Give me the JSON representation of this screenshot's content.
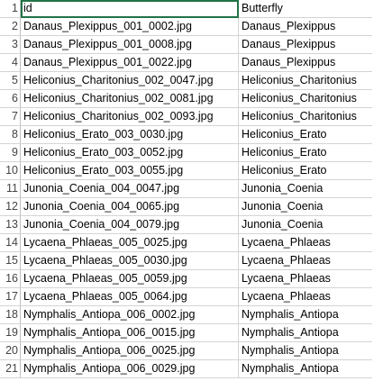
{
  "sheet": {
    "headers": [
      "id",
      "Butterfly"
    ],
    "rows": [
      {
        "num": "1",
        "id": "id",
        "butterfly": "Butterfly"
      },
      {
        "num": "2",
        "id": "Danaus_Plexippus_001_0002.jpg",
        "butterfly": "Danaus_Plexippus"
      },
      {
        "num": "3",
        "id": "Danaus_Plexippus_001_0008.jpg",
        "butterfly": "Danaus_Plexippus"
      },
      {
        "num": "4",
        "id": "Danaus_Plexippus_001_0022.jpg",
        "butterfly": "Danaus_Plexippus"
      },
      {
        "num": "5",
        "id": "Heliconius_Charitonius_002_0047.jpg",
        "butterfly": "Heliconius_Charitonius"
      },
      {
        "num": "6",
        "id": "Heliconius_Charitonius_002_0081.jpg",
        "butterfly": "Heliconius_Charitonius"
      },
      {
        "num": "7",
        "id": "Heliconius_Charitonius_002_0093.jpg",
        "butterfly": "Heliconius_Charitonius"
      },
      {
        "num": "8",
        "id": "Heliconius_Erato_003_0030.jpg",
        "butterfly": "Heliconius_Erato"
      },
      {
        "num": "9",
        "id": "Heliconius_Erato_003_0052.jpg",
        "butterfly": "Heliconius_Erato"
      },
      {
        "num": "10",
        "id": "Heliconius_Erato_003_0055.jpg",
        "butterfly": "Heliconius_Erato"
      },
      {
        "num": "11",
        "id": "Junonia_Coenia_004_0047.jpg",
        "butterfly": "Junonia_Coenia"
      },
      {
        "num": "12",
        "id": "Junonia_Coenia_004_0065.jpg",
        "butterfly": "Junonia_Coenia"
      },
      {
        "num": "13",
        "id": "Junonia_Coenia_004_0079.jpg",
        "butterfly": "Junonia_Coenia"
      },
      {
        "num": "14",
        "id": "Lycaena_Phlaeas_005_0025.jpg",
        "butterfly": "Lycaena_Phlaeas"
      },
      {
        "num": "15",
        "id": "Lycaena_Phlaeas_005_0030.jpg",
        "butterfly": "Lycaena_Phlaeas"
      },
      {
        "num": "16",
        "id": "Lycaena_Phlaeas_005_0059.jpg",
        "butterfly": "Lycaena_Phlaeas"
      },
      {
        "num": "17",
        "id": "Lycaena_Phlaeas_005_0064.jpg",
        "butterfly": "Lycaena_Phlaeas"
      },
      {
        "num": "18",
        "id": "Nymphalis_Antiopa_006_0002.jpg",
        "butterfly": "Nymphalis_Antiopa"
      },
      {
        "num": "19",
        "id": "Nymphalis_Antiopa_006_0015.jpg",
        "butterfly": "Nymphalis_Antiopa"
      },
      {
        "num": "20",
        "id": "Nymphalis_Antiopa_006_0025.jpg",
        "butterfly": "Nymphalis_Antiopa"
      },
      {
        "num": "21",
        "id": "Nymphalis_Antiopa_006_0029.jpg",
        "butterfly": "Nymphalis_Antiopa"
      }
    ]
  },
  "colors": {
    "selection": "#217346",
    "gridline": "#d4d4d4"
  }
}
